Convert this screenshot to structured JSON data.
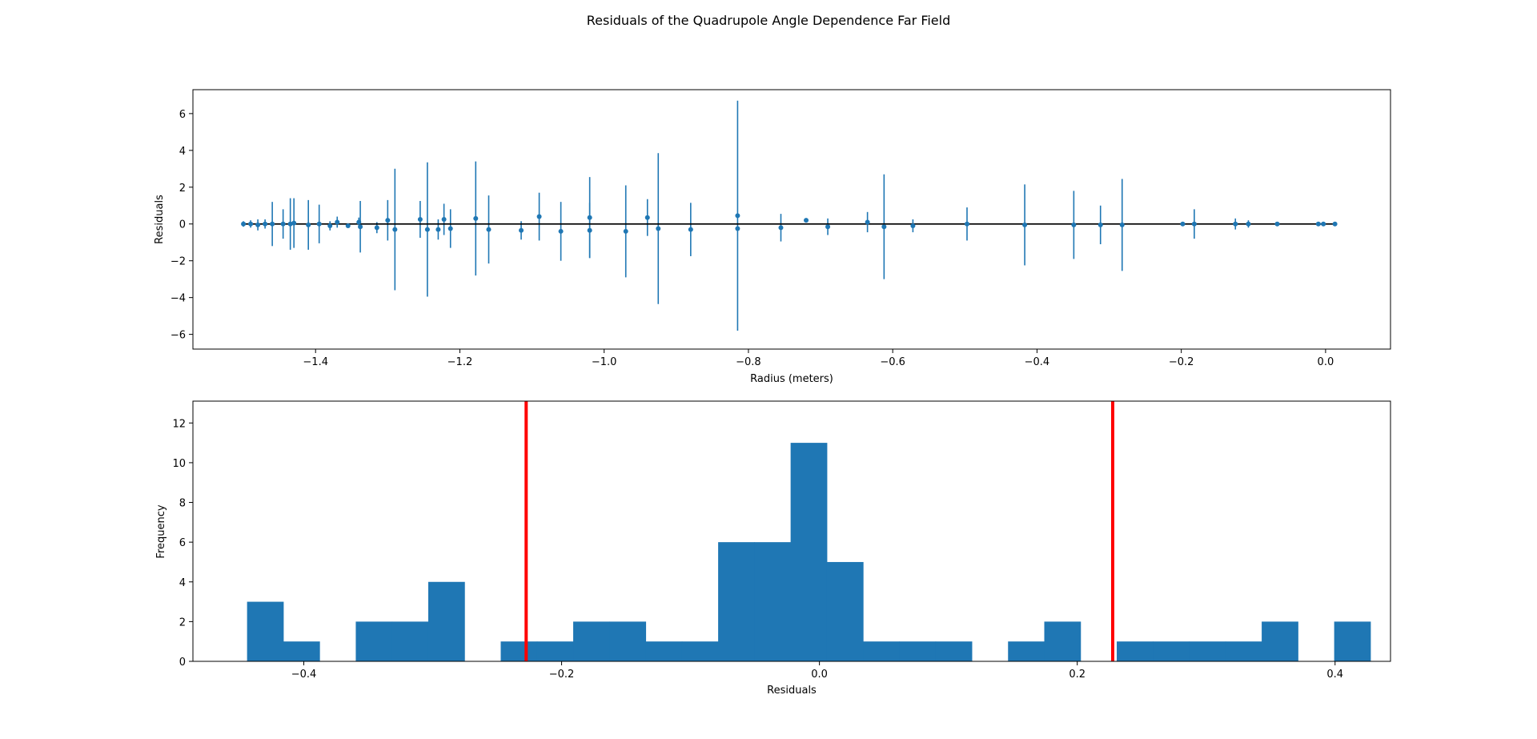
{
  "figure": {
    "title": "Residuals of the Quadrupole Angle Dependence Far Field"
  },
  "colors": {
    "series": "#1f77b4",
    "zero_line": "#000000",
    "sigma_line": "#ff0000",
    "axes": "#000000"
  },
  "chart_data": [
    {
      "type": "scatter",
      "name": "residuals-vs-radius",
      "xlabel": "Radius (meters)",
      "ylabel": "Residuals",
      "xlim": [
        -1.57,
        0.09
      ],
      "ylim": [
        -6.8,
        7.3
      ],
      "xticks": [
        -1.4,
        -1.2,
        -1.0,
        -0.8,
        -0.6,
        -0.4,
        -0.2,
        0.0
      ],
      "xtick_labels": [
        "−1.4",
        "−1.2",
        "−1.0",
        "−0.8",
        "−0.6",
        "−0.4",
        "−0.2",
        "0.0"
      ],
      "yticks": [
        -6,
        -4,
        -2,
        0,
        2,
        4,
        6
      ],
      "ytick_labels": [
        "−6",
        "−4",
        "−2",
        "0",
        "2",
        "4",
        "6"
      ],
      "zero_line": true,
      "grid": false,
      "points": [
        {
          "x": -1.5,
          "y": 0.0,
          "err": 0.15
        },
        {
          "x": -1.49,
          "y": 0.0,
          "err": 0.2
        },
        {
          "x": -1.48,
          "y": -0.05,
          "err": 0.3
        },
        {
          "x": -1.47,
          "y": 0.0,
          "err": 0.25
        },
        {
          "x": -1.46,
          "y": 0.0,
          "err": 1.2
        },
        {
          "x": -1.445,
          "y": 0.0,
          "err": 0.8
        },
        {
          "x": -1.435,
          "y": 0.0,
          "err": 1.4
        },
        {
          "x": -1.43,
          "y": 0.05,
          "err": 1.35
        },
        {
          "x": -1.41,
          "y": -0.05,
          "err": 1.35
        },
        {
          "x": -1.395,
          "y": 0.0,
          "err": 1.05
        },
        {
          "x": -1.38,
          "y": -0.1,
          "err": 0.25
        },
        {
          "x": -1.37,
          "y": 0.1,
          "err": 0.3
        },
        {
          "x": -1.355,
          "y": -0.1,
          "err": 0.1
        },
        {
          "x": -1.34,
          "y": 0.1,
          "err": 0.25
        },
        {
          "x": -1.338,
          "y": -0.15,
          "err": 1.4
        },
        {
          "x": -1.315,
          "y": -0.2,
          "err": 0.3
        },
        {
          "x": -1.3,
          "y": 0.2,
          "err": 1.1
        },
        {
          "x": -1.29,
          "y": -0.3,
          "err": 3.3
        },
        {
          "x": -1.255,
          "y": 0.25,
          "err": 1.0
        },
        {
          "x": -1.245,
          "y": -0.3,
          "err": 3.65
        },
        {
          "x": -1.23,
          "y": -0.3,
          "err": 0.55
        },
        {
          "x": -1.222,
          "y": 0.25,
          "err": 0.85
        },
        {
          "x": -1.213,
          "y": -0.25,
          "err": 1.05
        },
        {
          "x": -1.178,
          "y": 0.3,
          "err": 3.1
        },
        {
          "x": -1.16,
          "y": -0.3,
          "err": 1.85
        },
        {
          "x": -1.115,
          "y": -0.35,
          "err": 0.5
        },
        {
          "x": -1.09,
          "y": 0.4,
          "err": 1.3
        },
        {
          "x": -1.06,
          "y": -0.4,
          "err": 1.6
        },
        {
          "x": -1.02,
          "y": 0.35,
          "err": 2.2
        },
        {
          "x": -1.02,
          "y": -0.35,
          "err": 1.5
        },
        {
          "x": -0.97,
          "y": -0.4,
          "err": 2.5
        },
        {
          "x": -0.94,
          "y": 0.35,
          "err": 1.0
        },
        {
          "x": -0.925,
          "y": -0.25,
          "err": 4.1
        },
        {
          "x": -0.88,
          "y": -0.3,
          "err": 1.45
        },
        {
          "x": -0.815,
          "y": 0.45,
          "err": 6.25
        },
        {
          "x": -0.815,
          "y": -0.25,
          "err": 0.0
        },
        {
          "x": -0.755,
          "y": -0.2,
          "err": 0.75
        },
        {
          "x": -0.72,
          "y": 0.2,
          "err": 0.0
        },
        {
          "x": -0.69,
          "y": -0.15,
          "err": 0.45
        },
        {
          "x": -0.635,
          "y": 0.1,
          "err": 0.55
        },
        {
          "x": -0.612,
          "y": -0.15,
          "err": 2.85
        },
        {
          "x": -0.572,
          "y": -0.1,
          "err": 0.35
        },
        {
          "x": -0.497,
          "y": 0.0,
          "err": 0.9
        },
        {
          "x": -0.417,
          "y": -0.05,
          "err": 2.2
        },
        {
          "x": -0.349,
          "y": -0.05,
          "err": 1.85
        },
        {
          "x": -0.312,
          "y": -0.05,
          "err": 1.05
        },
        {
          "x": -0.282,
          "y": -0.05,
          "err": 2.5
        },
        {
          "x": -0.198,
          "y": 0.0,
          "err": 0.1
        },
        {
          "x": -0.182,
          "y": 0.0,
          "err": 0.8
        },
        {
          "x": -0.125,
          "y": 0.0,
          "err": 0.3
        },
        {
          "x": -0.107,
          "y": 0.0,
          "err": 0.2
        },
        {
          "x": -0.067,
          "y": 0.0,
          "err": 0.1
        },
        {
          "x": -0.01,
          "y": 0.0,
          "err": 0.05
        },
        {
          "x": -0.003,
          "y": 0.0,
          "err": 0.05
        },
        {
          "x": 0.013,
          "y": 0.0,
          "err": 0.05
        }
      ]
    },
    {
      "type": "bar",
      "name": "residuals-histogram",
      "xlabel": "Residuals",
      "ylabel": "Frequency",
      "xlim": [
        -0.486,
        0.443
      ],
      "ylim": [
        0,
        13.1
      ],
      "xticks": [
        -0.4,
        -0.2,
        0.0,
        0.2,
        0.4
      ],
      "xtick_labels": [
        "−0.4",
        "−0.2",
        "0.0",
        "0.2",
        "0.4"
      ],
      "yticks": [
        0,
        2,
        4,
        6,
        8,
        10,
        12
      ],
      "ytick_labels": [
        "0",
        "2",
        "4",
        "6",
        "8",
        "10",
        "12"
      ],
      "bin_start": -0.444,
      "bin_width": 0.02811,
      "counts": [
        3,
        1,
        0,
        2,
        2,
        4,
        0,
        1,
        1,
        2,
        2,
        1,
        1,
        6,
        6,
        11,
        5,
        1,
        1,
        1,
        0,
        1,
        2,
        0,
        1,
        1,
        1,
        1,
        2,
        0,
        2
      ],
      "vlines": [
        -0.2275,
        0.2275
      ],
      "grid": false
    }
  ]
}
